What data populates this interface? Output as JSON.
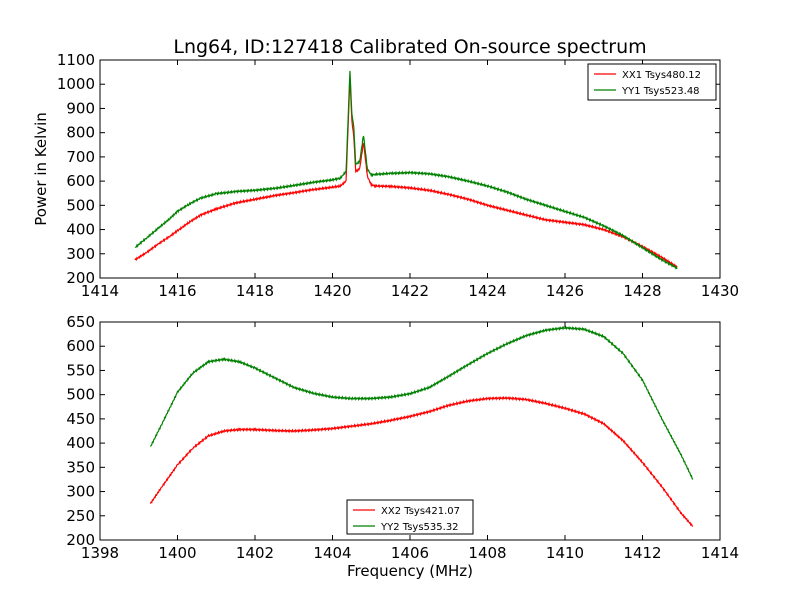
{
  "figure_title": "Lng64, ID:127418 Calibrated On-source spectrum",
  "chart_data": [
    {
      "type": "line",
      "title": "Lng64, ID:127418 Calibrated On-source spectrum",
      "xlabel": "",
      "ylabel": "Power in Kelvin",
      "xlim": [
        1414,
        1430
      ],
      "ylim": [
        200,
        1100
      ],
      "xticks": [
        "1414",
        "1416",
        "1418",
        "1420",
        "1422",
        "1424",
        "1426",
        "1428",
        "1430"
      ],
      "yticks": [
        "200",
        "300",
        "400",
        "500",
        "600",
        "700",
        "800",
        "900",
        "1000",
        "1100"
      ],
      "grid": false,
      "legend_position": "top-right",
      "series": [
        {
          "name": "XX1 Tsys480.12",
          "color": "#ff0000",
          "x": [
            1414.9,
            1415.2,
            1415.5,
            1415.8,
            1416.0,
            1416.3,
            1416.6,
            1417.0,
            1417.5,
            1418.0,
            1418.5,
            1419.0,
            1419.5,
            1420.0,
            1420.2,
            1420.35,
            1420.45,
            1420.5,
            1420.55,
            1420.6,
            1420.7,
            1420.8,
            1420.9,
            1421.0,
            1421.1,
            1421.5,
            1422.0,
            1422.5,
            1423.0,
            1423.5,
            1424.0,
            1424.5,
            1425.0,
            1425.5,
            1426.0,
            1426.5,
            1427.0,
            1427.5,
            1428.0,
            1428.5,
            1428.9
          ],
          "y": [
            275,
            305,
            340,
            372,
            395,
            430,
            460,
            485,
            510,
            525,
            540,
            552,
            565,
            575,
            580,
            600,
            1025,
            850,
            780,
            640,
            650,
            760,
            620,
            585,
            580,
            578,
            572,
            562,
            545,
            525,
            500,
            480,
            460,
            440,
            430,
            420,
            400,
            370,
            330,
            285,
            245
          ]
        },
        {
          "name": "YY1 Tsys523.48",
          "color": "#008000",
          "x": [
            1414.9,
            1415.2,
            1415.5,
            1415.8,
            1416.0,
            1416.3,
            1416.6,
            1417.0,
            1417.5,
            1418.0,
            1418.5,
            1419.0,
            1419.5,
            1420.0,
            1420.2,
            1420.35,
            1420.45,
            1420.5,
            1420.55,
            1420.6,
            1420.7,
            1420.8,
            1420.9,
            1421.0,
            1421.1,
            1421.5,
            1422.0,
            1422.5,
            1423.0,
            1423.5,
            1424.0,
            1424.5,
            1425.0,
            1425.5,
            1426.0,
            1426.5,
            1427.0,
            1427.5,
            1428.0,
            1428.5,
            1428.9
          ],
          "y": [
            325,
            365,
            405,
            445,
            475,
            505,
            530,
            548,
            557,
            562,
            570,
            582,
            595,
            605,
            612,
            640,
            1055,
            880,
            820,
            670,
            680,
            790,
            650,
            625,
            628,
            632,
            635,
            630,
            618,
            600,
            580,
            555,
            525,
            500,
            475,
            450,
            415,
            375,
            325,
            275,
            240
          ]
        }
      ]
    },
    {
      "type": "line",
      "title": "",
      "xlabel": "Frequency (MHz)",
      "ylabel": "",
      "xlim": [
        1398,
        1414
      ],
      "ylim": [
        200,
        650
      ],
      "xticks": [
        "1398",
        "1400",
        "1402",
        "1404",
        "1406",
        "1408",
        "1410",
        "1412",
        "1414"
      ],
      "yticks": [
        "200",
        "250",
        "300",
        "350",
        "400",
        "450",
        "500",
        "550",
        "600",
        "650"
      ],
      "grid": false,
      "legend_position": "lower-center",
      "series": [
        {
          "name": "XX2 Tsys421.07",
          "color": "#ff0000",
          "x": [
            1399.3,
            1399.6,
            1400.0,
            1400.4,
            1400.8,
            1401.2,
            1401.6,
            1402.0,
            1402.5,
            1403.0,
            1403.5,
            1404.0,
            1404.5,
            1405.0,
            1405.5,
            1406.0,
            1406.5,
            1407.0,
            1407.5,
            1408.0,
            1408.5,
            1409.0,
            1409.5,
            1410.0,
            1410.5,
            1411.0,
            1411.5,
            1412.0,
            1412.5,
            1413.0,
            1413.3
          ],
          "y": [
            275,
            310,
            355,
            390,
            415,
            425,
            428,
            428,
            426,
            425,
            427,
            430,
            435,
            440,
            447,
            455,
            465,
            478,
            487,
            492,
            493,
            490,
            482,
            472,
            460,
            440,
            405,
            360,
            310,
            255,
            228
          ]
        },
        {
          "name": "YY2 Tsys535.32",
          "color": "#008000",
          "x": [
            1399.3,
            1399.6,
            1400.0,
            1400.4,
            1400.8,
            1401.2,
            1401.6,
            1402.0,
            1402.5,
            1403.0,
            1403.5,
            1404.0,
            1404.5,
            1405.0,
            1405.5,
            1406.0,
            1406.5,
            1407.0,
            1407.5,
            1408.0,
            1408.5,
            1409.0,
            1409.5,
            1410.0,
            1410.5,
            1411.0,
            1411.5,
            1412.0,
            1412.5,
            1413.0,
            1413.3
          ],
          "y": [
            392,
            440,
            505,
            545,
            568,
            573,
            568,
            555,
            535,
            515,
            503,
            495,
            492,
            492,
            495,
            502,
            515,
            538,
            562,
            585,
            605,
            622,
            633,
            638,
            635,
            620,
            585,
            530,
            450,
            375,
            325
          ]
        }
      ]
    }
  ]
}
